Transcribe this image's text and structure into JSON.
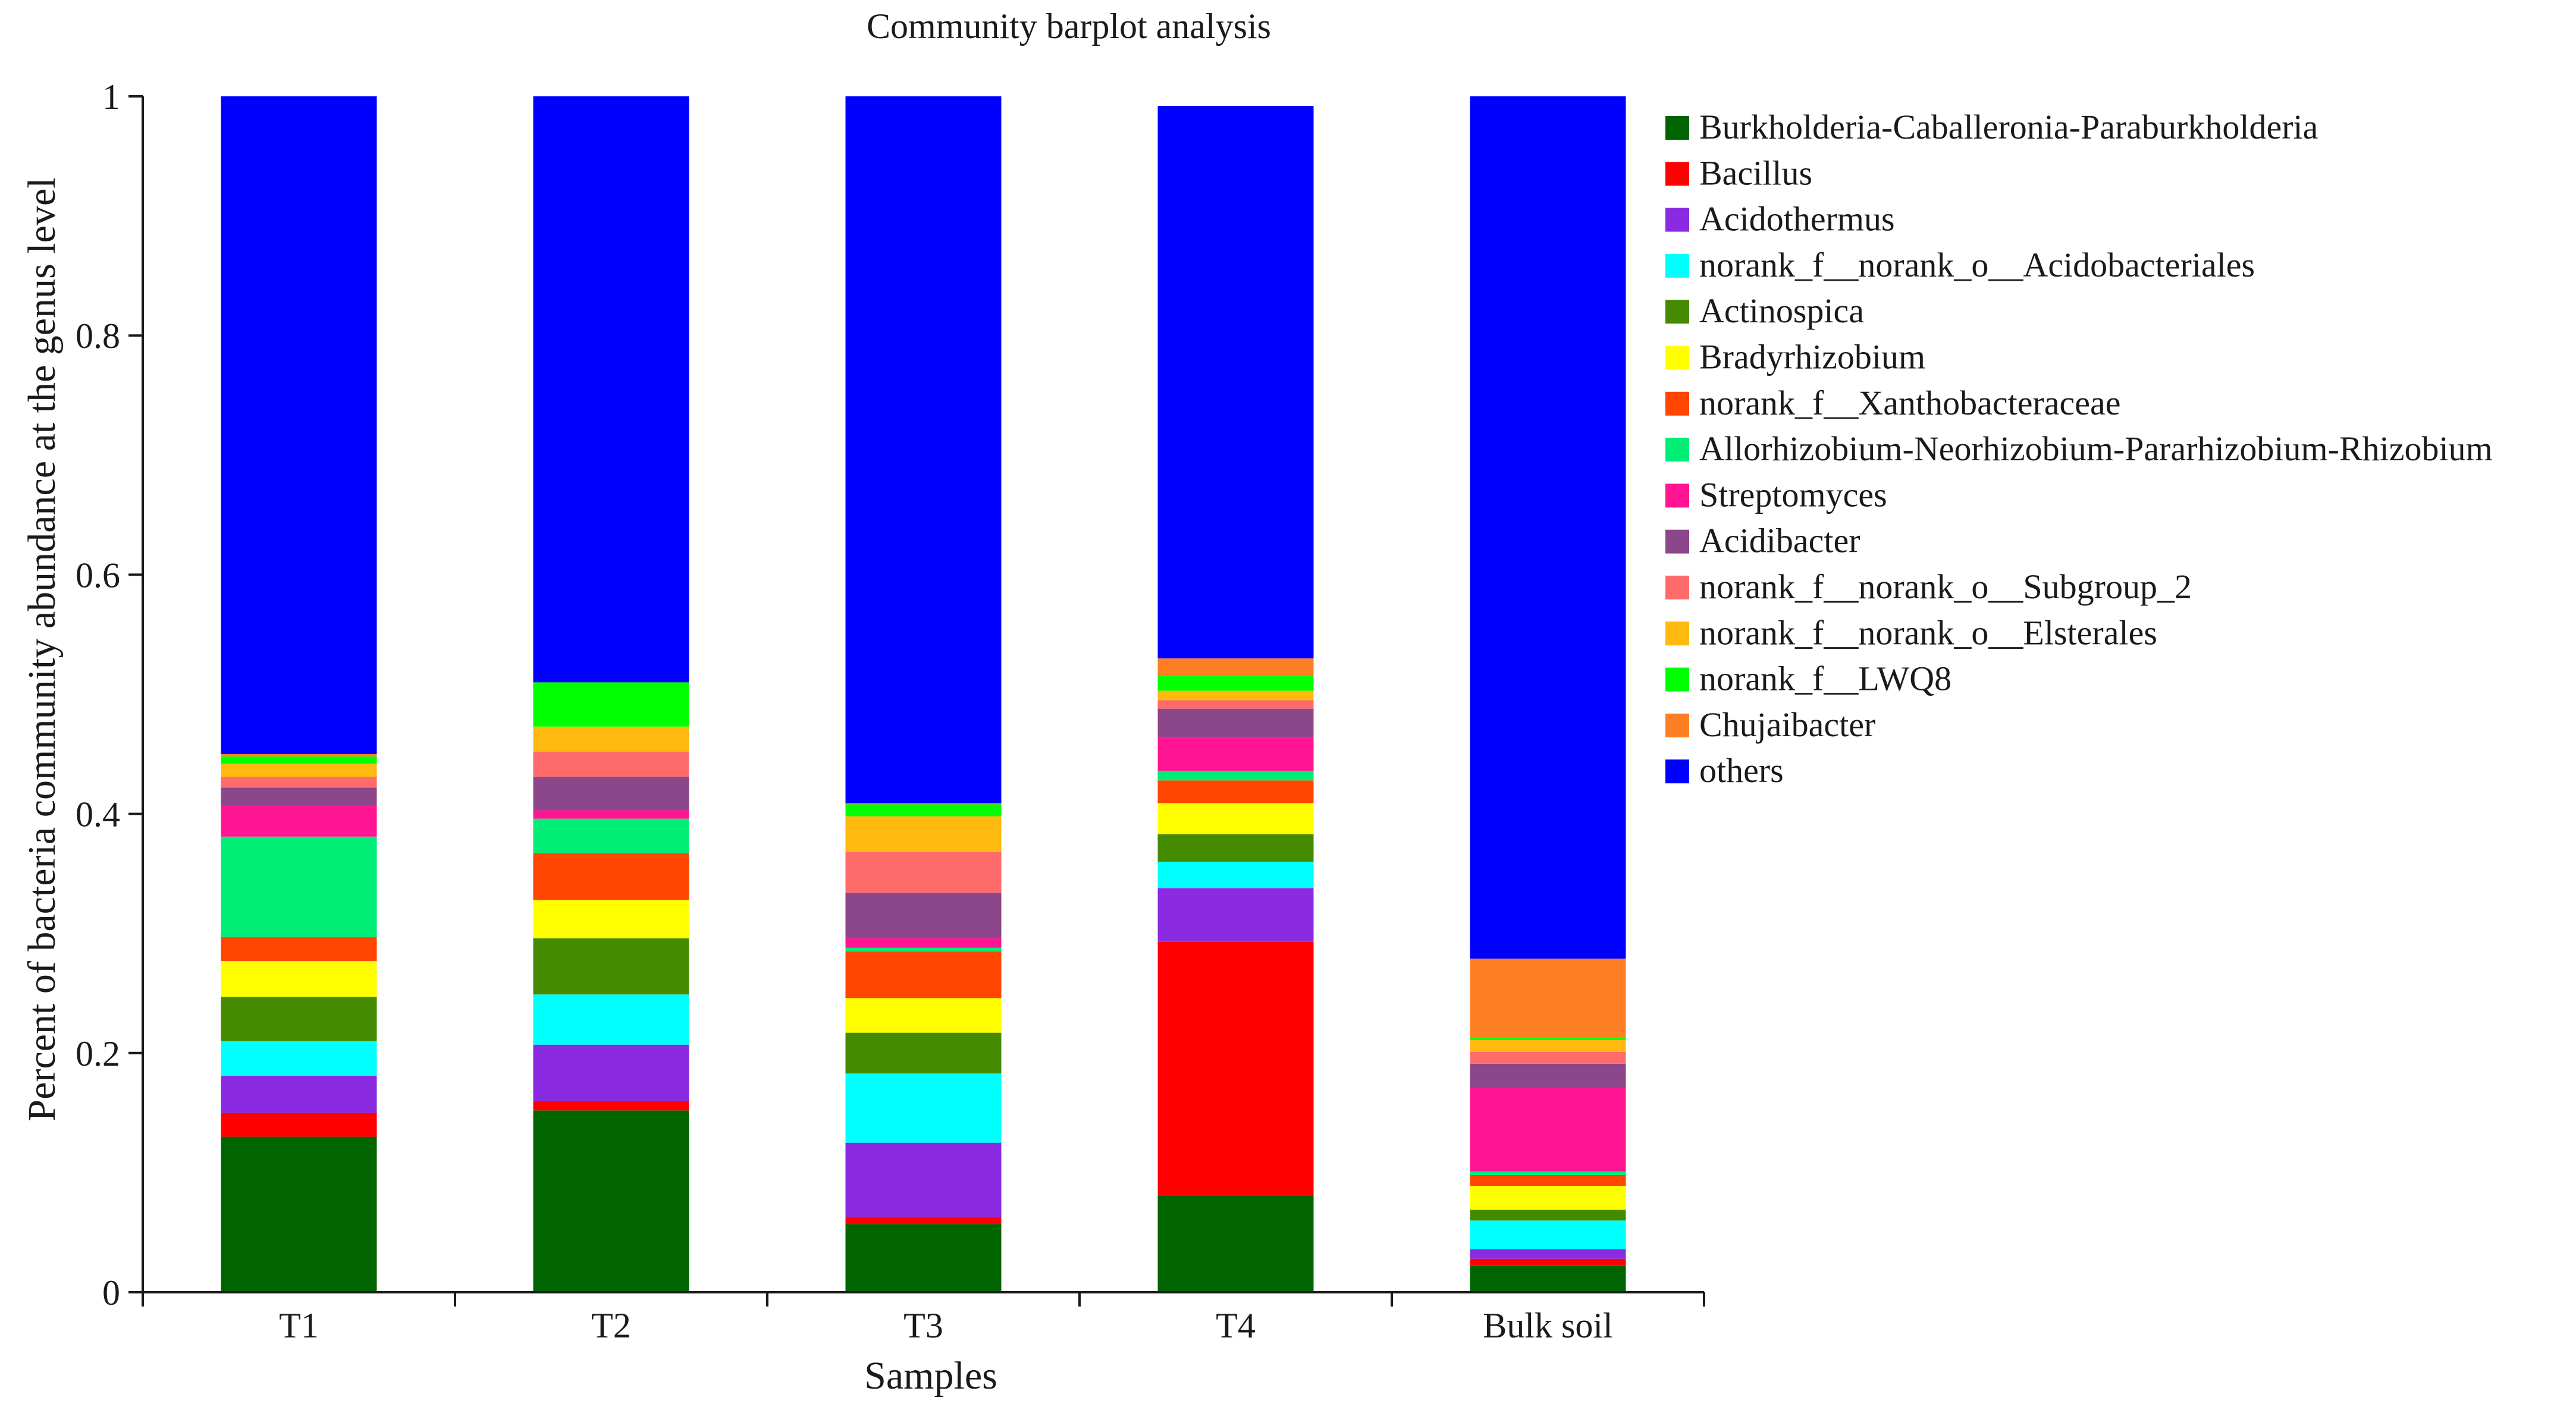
{
  "chart_data": {
    "type": "bar",
    "stacked": true,
    "title": "Community barplot analysis",
    "xlabel": "Samples",
    "ylabel": "Percent of bacteria community abundance at the genus level",
    "ylim": [
      0,
      1
    ],
    "yticks": [
      0,
      0.2,
      0.4,
      0.6,
      0.8,
      1
    ],
    "ytick_labels": [
      "0",
      "0.2",
      "0.4",
      "0.6",
      "0.8",
      "1"
    ],
    "categories": [
      "T1",
      "T2",
      "T3",
      "T4",
      "Bulk soil"
    ],
    "legend_position": "right",
    "series": [
      {
        "name": "Burkholderia-Caballeronia-Paraburkholderia",
        "color": "#006400",
        "values": [
          0.13,
          0.152,
          0.057,
          0.081,
          0.022
        ]
      },
      {
        "name": "Bacillus",
        "color": "#ff0000",
        "values": [
          0.02,
          0.008,
          0.006,
          0.212,
          0.006
        ]
      },
      {
        "name": "Acidothermus",
        "color": "#8a2be2",
        "values": [
          0.031,
          0.047,
          0.062,
          0.045,
          0.008
        ]
      },
      {
        "name": "norank_f__norank_o__Acidobacteriales",
        "color": "#00ffff",
        "values": [
          0.029,
          0.042,
          0.058,
          0.022,
          0.024
        ]
      },
      {
        "name": "Actinospica",
        "color": "#458b00",
        "values": [
          0.037,
          0.047,
          0.034,
          0.023,
          0.009
        ]
      },
      {
        "name": "Bradyrhizobium",
        "color": "#ffff00",
        "values": [
          0.03,
          0.032,
          0.029,
          0.026,
          0.02
        ]
      },
      {
        "name": "norank_f__Xanthobacteraceae",
        "color": "#ff4500",
        "values": [
          0.02,
          0.039,
          0.039,
          0.019,
          0.009
        ]
      },
      {
        "name": "Allorhizobium-Neorhizobium-Pararhizobium-Rhizobium",
        "color": "#00ee76",
        "values": [
          0.084,
          0.029,
          0.003,
          0.008,
          0.003
        ]
      },
      {
        "name": "Streptomyces",
        "color": "#ff1493",
        "values": [
          0.026,
          0.007,
          0.008,
          0.028,
          0.07
        ]
      },
      {
        "name": "Acidibacter",
        "color": "#8b4789",
        "values": [
          0.015,
          0.028,
          0.038,
          0.024,
          0.02
        ]
      },
      {
        "name": "norank_f__norank_o__Subgroup_2",
        "color": "#ff6a6a",
        "values": [
          0.009,
          0.021,
          0.034,
          0.007,
          0.01
        ]
      },
      {
        "name": "norank_f__norank_o__Elsterales",
        "color": "#ffb90f",
        "values": [
          0.011,
          0.021,
          0.03,
          0.008,
          0.01
        ]
      },
      {
        "name": "norank_f__LWQ8",
        "color": "#00ff00",
        "values": [
          0.006,
          0.037,
          0.01,
          0.013,
          0.002
        ]
      },
      {
        "name": "Chujaibacter",
        "color": "#ff7f24",
        "values": [
          0.002,
          0.0,
          0.001,
          0.014,
          0.066
        ]
      },
      {
        "name": "others",
        "color": "#0000ff",
        "values": [
          0.55,
          0.49,
          0.591,
          0.462,
          0.721
        ]
      }
    ]
  }
}
